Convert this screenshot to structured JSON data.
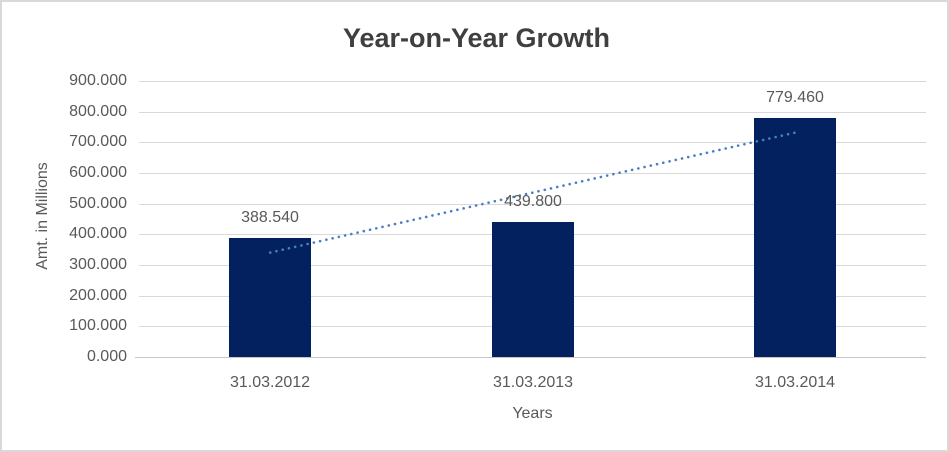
{
  "window": {
    "background_color": "#ffffff",
    "border_color": "#d9d9d9"
  },
  "chart_data": {
    "type": "bar",
    "title": "Year-on-Year Growth",
    "xlabel": "Years",
    "ylabel": "Amt. in Millions",
    "categories": [
      "31.03.2012",
      "31.03.2013",
      "31.03.2014"
    ],
    "values": [
      388.54,
      439.8,
      779.46
    ],
    "data_labels": [
      "388.540",
      "439.800",
      "779.460"
    ],
    "ylim": [
      0,
      900
    ],
    "y_tick_values": [
      900,
      800,
      700,
      600,
      500,
      400,
      300,
      200,
      100,
      0
    ],
    "y_tick_labels": [
      "900.000",
      "800.000",
      "700.000",
      "600.000",
      "500.000",
      "400.000",
      "300.000",
      "200.000",
      "100.000",
      "0.000"
    ],
    "grid": true,
    "legend_position": "none",
    "bar_color": "#02215e",
    "trendline": {
      "type": "linear",
      "style": "dotted",
      "color": "#4a7dc3"
    },
    "gridline_color": "#d9d9d9",
    "axis_line_color": "#c6c6c6",
    "tick_label_color": "#595959",
    "title_color": "#3f3f3f"
  }
}
